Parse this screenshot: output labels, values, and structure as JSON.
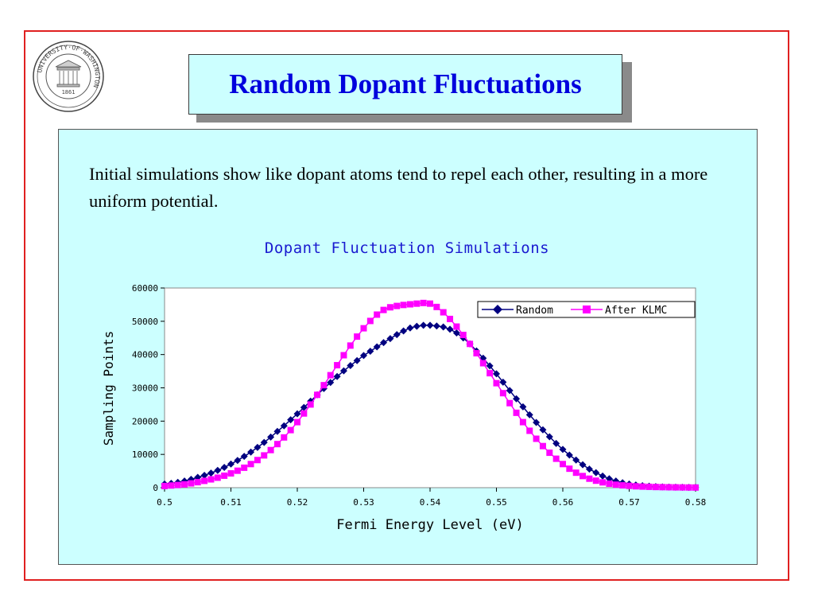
{
  "slide": {
    "title": "Random Dopant Fluctuations",
    "intro": "Initial simulations show like dopant atoms tend to repel each other, resulting in a more uniform potential.",
    "logo": {
      "ring_text": "UNIVERSITY·OF·WASHINGTON",
      "year": "1861",
      "icon": "university-seal-icon"
    }
  },
  "chart_data": {
    "type": "line",
    "title": "Dopant Fluctuation Simulations",
    "xlabel": "Fermi Energy Level (eV)",
    "ylabel": "Sampling Points",
    "xlim": [
      0.5,
      0.58
    ],
    "ylim": [
      0,
      60000
    ],
    "xticks": [
      0.5,
      0.51,
      0.52,
      0.53,
      0.54,
      0.55,
      0.56,
      0.57,
      0.58
    ],
    "xtick_labels": [
      "0.5",
      "0.51",
      "0.52",
      "0.53",
      "0.54",
      "0.55",
      "0.56",
      "0.57",
      "0.58"
    ],
    "yticks": [
      0,
      10000,
      20000,
      30000,
      40000,
      50000,
      60000
    ],
    "ytick_labels": [
      "0",
      "10000",
      "20000",
      "30000",
      "40000",
      "50000",
      "60000"
    ],
    "grid": false,
    "legend_position": "top-right",
    "x": [
      0.5,
      0.501,
      0.502,
      0.503,
      0.504,
      0.505,
      0.506,
      0.507,
      0.508,
      0.509,
      0.51,
      0.511,
      0.512,
      0.513,
      0.514,
      0.515,
      0.516,
      0.517,
      0.518,
      0.519,
      0.52,
      0.521,
      0.522,
      0.523,
      0.524,
      0.525,
      0.526,
      0.527,
      0.528,
      0.529,
      0.53,
      0.531,
      0.532,
      0.533,
      0.534,
      0.535,
      0.536,
      0.537,
      0.538,
      0.539,
      0.54,
      0.541,
      0.542,
      0.543,
      0.544,
      0.545,
      0.546,
      0.547,
      0.548,
      0.549,
      0.55,
      0.551,
      0.552,
      0.553,
      0.554,
      0.555,
      0.556,
      0.557,
      0.558,
      0.559,
      0.56,
      0.561,
      0.562,
      0.563,
      0.564,
      0.565,
      0.566,
      0.567,
      0.568,
      0.569,
      0.57,
      0.571,
      0.572,
      0.573,
      0.574,
      0.575,
      0.576,
      0.577,
      0.578,
      0.579,
      0.58
    ],
    "series": [
      {
        "name": "Random",
        "color": "#000080",
        "marker": "diamond",
        "values": [
          1100,
          1300,
          1600,
          2000,
          2500,
          3100,
          3700,
          4400,
          5200,
          6100,
          7100,
          8200,
          9400,
          10700,
          12100,
          13600,
          15200,
          16900,
          18600,
          20400,
          22200,
          24100,
          26000,
          27900,
          29800,
          31600,
          33400,
          35100,
          36700,
          38200,
          39700,
          41000,
          42300,
          43600,
          44800,
          46000,
          47100,
          48000,
          48500,
          48800,
          48800,
          48600,
          48300,
          47600,
          46500,
          45000,
          43200,
          41100,
          38900,
          36600,
          34200,
          31700,
          29200,
          26700,
          24300,
          21900,
          19600,
          17400,
          15300,
          13300,
          11500,
          9800,
          8300,
          6900,
          5600,
          4500,
          3500,
          2700,
          2000,
          1500,
          1100,
          800,
          600,
          450,
          330,
          250,
          190,
          150,
          120,
          100,
          80
        ]
      },
      {
        "name": "After KLMC",
        "color": "#ff00ff",
        "marker": "square",
        "values": [
          500,
          650,
          800,
          1000,
          1300,
          1650,
          2050,
          2500,
          3000,
          3600,
          4300,
          5100,
          6000,
          7100,
          8300,
          9700,
          11300,
          13100,
          15100,
          17300,
          19700,
          22300,
          25000,
          27900,
          30800,
          33800,
          36800,
          39800,
          42700,
          45400,
          47900,
          50100,
          52000,
          53400,
          54200,
          54600,
          54900,
          55100,
          55300,
          55500,
          55300,
          54300,
          52700,
          50700,
          48400,
          45900,
          43200,
          40400,
          37400,
          34400,
          31400,
          28400,
          25400,
          22500,
          19700,
          17100,
          14700,
          12500,
          10500,
          8700,
          7100,
          5700,
          4500,
          3500,
          2700,
          2100,
          1600,
          1200,
          900,
          700,
          550,
          420,
          330,
          260,
          200,
          160,
          130,
          100,
          80,
          60,
          50
        ]
      }
    ]
  }
}
